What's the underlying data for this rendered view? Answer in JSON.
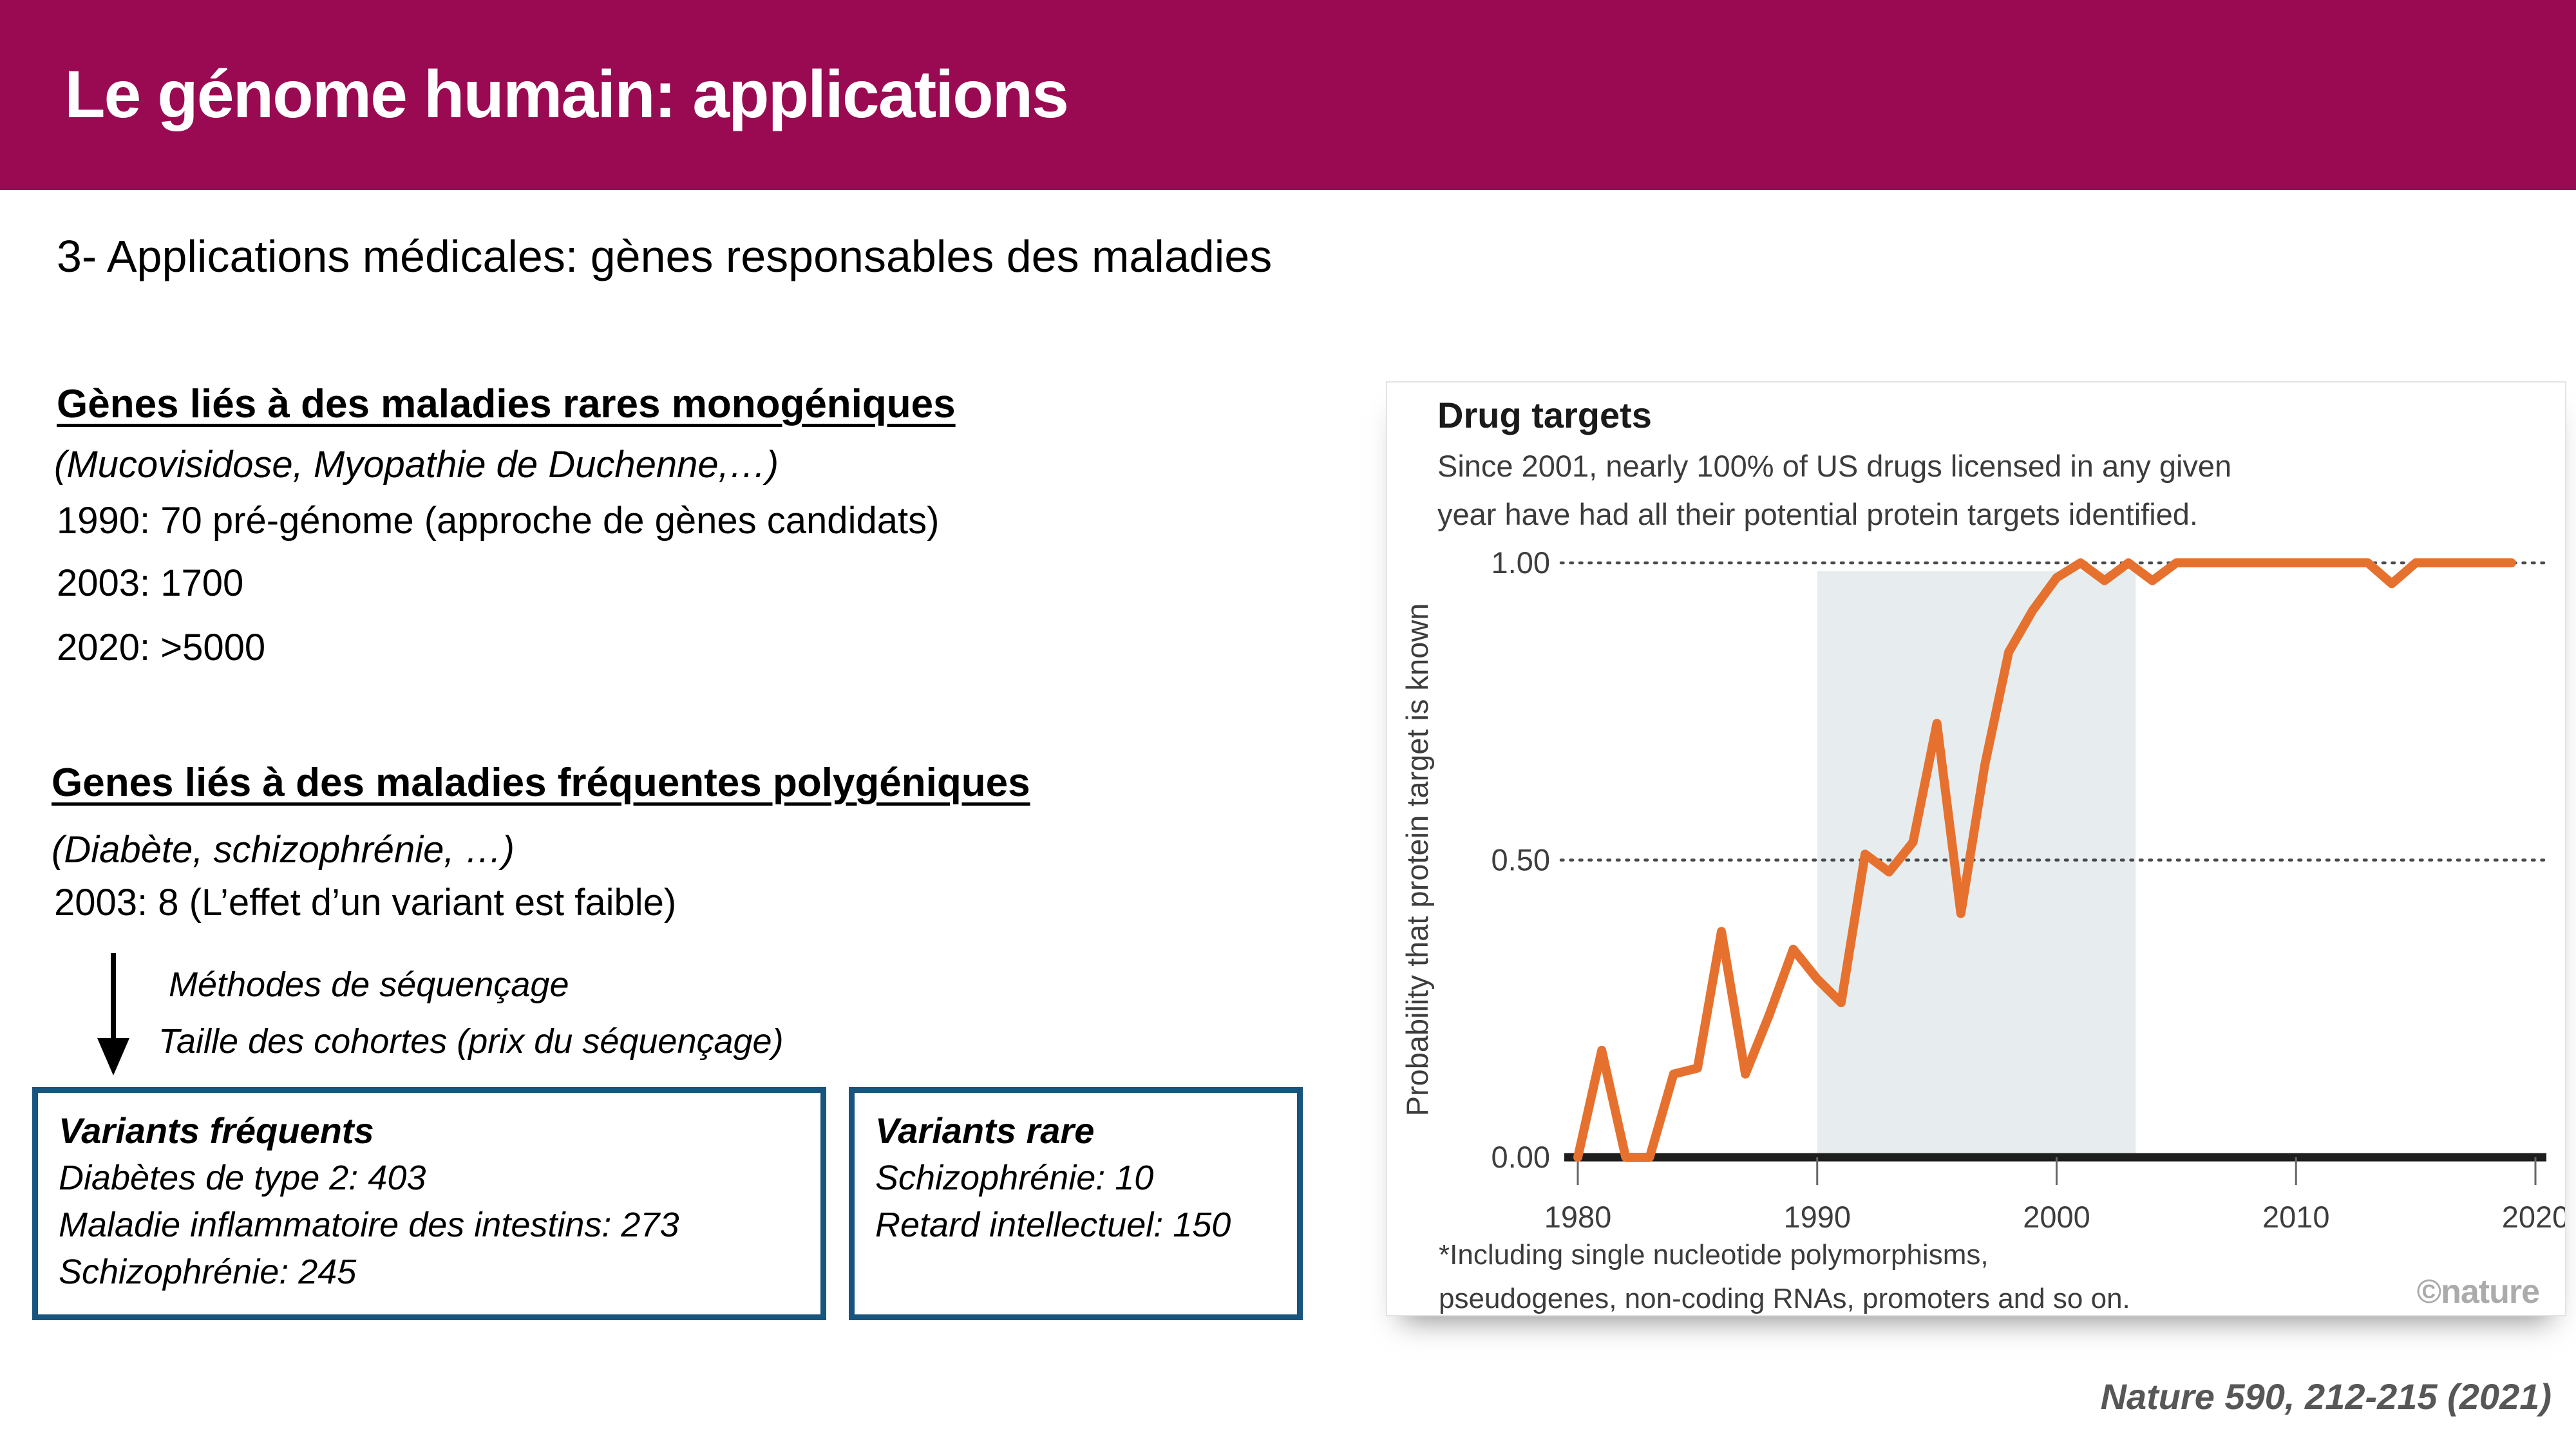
{
  "slide": {
    "title": "Le génome humain: applications",
    "subtitle": "3- Applications médicales: gènes responsables des maladies",
    "citation": "Nature 590, 212-215 (2021)",
    "colors": {
      "title_bar": "#9A0A52",
      "box_border": "#17547E",
      "line_orange": "#E6712F",
      "band_gray_blue": "#E7EDEF"
    }
  },
  "section_monogenic": {
    "heading": "Gènes liés à des maladies rares monogéniques",
    "examples": "(Mucovisidose, Myopathie de Duchenne,…)",
    "lines": [
      "1990: 70 pré-génome (approche de gènes candidats)",
      "2003: 1700",
      "2020: >5000"
    ]
  },
  "section_polygenic": {
    "heading": "Genes liés à des maladies fréquentes polygéniques",
    "examples": "(Diabète, schizophrénie, …)",
    "lines": [
      "2003: 8 (L’effet d’un variant est faible)"
    ]
  },
  "arrow_notes": {
    "line1": "Méthodes de séquençage",
    "line2": "Taille des cohortes (prix du séquençage)"
  },
  "box_frequent": {
    "heading": "Variants fréquents",
    "items": [
      "Diabètes de type 2: 403",
      "Maladie inflammatoire des intestins: 273",
      "Schizophrénie: 245"
    ]
  },
  "box_rare": {
    "heading": "Variants rare",
    "items": [
      "Schizophrénie: 10",
      "Retard intellectuel: 150"
    ]
  },
  "figure": {
    "subtitle_line1": "Since 2001, nearly 100% of US drugs licensed in any given",
    "subtitle_line2": "year have had all their potential protein targets identified.",
    "footnote_line1": "*Including single nucleotide polymorphisms,",
    "footnote_line2": "pseudogenes, non-coding RNAs, promoters and so on."
  },
  "chart_data": {
    "type": "line",
    "title": "Drug targets",
    "subtitle": "Since 2001, nearly 100% of US drugs licensed in any given year have had all their potential protein targets identified.",
    "xlabel": "",
    "ylabel": "Probability that protein target is known",
    "x": [
      1980,
      1981,
      1982,
      1983,
      1984,
      1985,
      1986,
      1987,
      1988,
      1989,
      1990,
      1991,
      1992,
      1993,
      1994,
      1995,
      1996,
      1997,
      1998,
      1999,
      2000,
      2001,
      2002,
      2003,
      2004,
      2005,
      2006,
      2007,
      2008,
      2009,
      2010,
      2011,
      2012,
      2013,
      2014,
      2015,
      2016,
      2017,
      2018,
      2019
    ],
    "series": [
      {
        "name": "Probability that protein target is known",
        "color": "#E6712F",
        "values": [
          0,
          0.18,
          0,
          0,
          0.14,
          0.15,
          0.38,
          0.14,
          0.24,
          0.35,
          0.3,
          0.26,
          0.51,
          0.48,
          0.53,
          0.73,
          0.41,
          0.66,
          0.85,
          0.92,
          0.975,
          1,
          0.97,
          1,
          0.97,
          1,
          1,
          1,
          1,
          1,
          1,
          1,
          1,
          1,
          0.965,
          1,
          1,
          1,
          1,
          1
        ]
      }
    ],
    "xlim": [
      1979.5,
      2020.5
    ],
    "ylim": [
      0,
      1
    ],
    "xticks": [
      1980,
      1990,
      2000,
      2010,
      2020
    ],
    "yticks": [
      0,
      0.5,
      1
    ],
    "ytick_labels": [
      "0.00",
      "0.50",
      "1.00"
    ],
    "gridlines_y": [
      0.5,
      1
    ],
    "grid_style": "dotted",
    "legend": "none",
    "highlight_band": {
      "from": 1990,
      "to": 2003.3,
      "color": "#E7EDEF"
    },
    "footnote": "*Including single nucleotide polymorphisms, pseudogenes, non-coding RNAs, promoters and so on.",
    "credit": "©nature"
  }
}
